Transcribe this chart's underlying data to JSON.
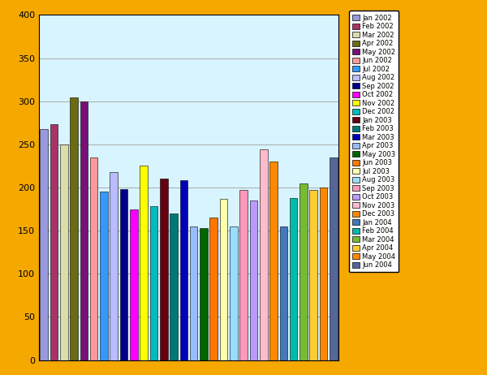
{
  "months": [
    "Jan 2002",
    "Feb 2002",
    "Mar 2002",
    "Apr 2002",
    "May 2002",
    "Jun 2002",
    "Jul 2002",
    "Aug 2002",
    "Sep 2002",
    "Oct 2002",
    "Nov 2002",
    "Dec 2002",
    "Jan 2003",
    "Feb 2003",
    "Mar 2003",
    "Apr 2003",
    "May 2003",
    "Jun 2003",
    "Jul 2003",
    "Aug 2003",
    "Sep 2003",
    "Oct 2003",
    "Nov 2003",
    "Dec 2003",
    "Jan 2004",
    "Feb 2004",
    "Mar 2004",
    "Apr 2004",
    "May 2004",
    "Jun 2004"
  ],
  "values": [
    268,
    273,
    250,
    304,
    300,
    235,
    195,
    218,
    198,
    175,
    225,
    178,
    210,
    170,
    208,
    155,
    153,
    165,
    187,
    155,
    197,
    185,
    244,
    230,
    155,
    188,
    205,
    197,
    200,
    235
  ],
  "colors": [
    "#9999dd",
    "#aa3366",
    "#ddddaa",
    "#6b6b10",
    "#771177",
    "#ff9999",
    "#3399ff",
    "#bbbbff",
    "#000088",
    "#ff00ff",
    "#ffff00",
    "#00bbbb",
    "#660011",
    "#007777",
    "#0000bb",
    "#99bbff",
    "#006600",
    "#ff7700",
    "#ffffaa",
    "#99ddff",
    "#ff99bb",
    "#bb99ff",
    "#ffbbcc",
    "#ff8800",
    "#4477bb",
    "#00bbaa",
    "#77bb33",
    "#ffcc33",
    "#ff8800",
    "#556699"
  ],
  "background_color": "#d8f4ff",
  "outer_background": "#f5a800",
  "ylim": [
    0,
    400
  ],
  "yticks": [
    0,
    50,
    100,
    150,
    200,
    250,
    300,
    350,
    400
  ],
  "grid_color": "#aaaaaa"
}
